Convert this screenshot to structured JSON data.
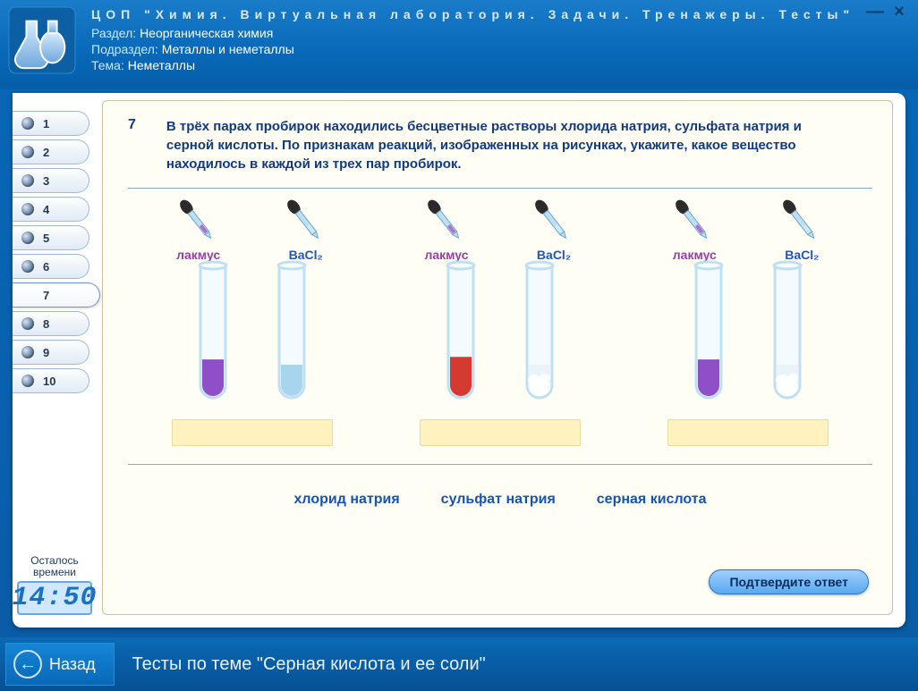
{
  "app_title": "ЦОП \"Химия. Виртуальная лаборатория. Задачи. Тренажеры. Тесты\"",
  "header": {
    "section_label": "Раздел:",
    "section_value": "Неорганическая химия",
    "subsection_label": "Подраздел:",
    "subsection_value": "Металлы и неметаллы",
    "topic_label": "Тема:",
    "topic_value": "Неметаллы"
  },
  "window_controls": {
    "minimize": "—",
    "close": "×"
  },
  "nav_numbers": [
    "1",
    "2",
    "3",
    "4",
    "5",
    "6",
    "7",
    "8",
    "9",
    "10"
  ],
  "current_question_index": 6,
  "timer": {
    "label_line1": "Осталось",
    "label_line2": "времени",
    "value": "14:50"
  },
  "question": {
    "number": "7",
    "text": "В трёх парах пробирок находились бесцветные растворы хлорида натрия, сульфата натрия и серной кислоты. По признакам реакций, изображенных на рисунках, укажите, какое вещество находилось в каждой из трех пар пробирок.",
    "reagent_labels": {
      "r1": "лакмус",
      "r2": "BaCl₂"
    },
    "pairs": [
      {
        "tube1_fill": "#8e4fc7",
        "tube1_level": 0.28,
        "tube2_fill": "#a8d4ee",
        "tube2_level": 0.24,
        "tube2_cloud": false
      },
      {
        "tube1_fill": "#d43a2f",
        "tube1_level": 0.3,
        "tube2_fill": "#eaf3f8",
        "tube2_level": 0.24,
        "tube2_cloud": true
      },
      {
        "tube1_fill": "#8e4fc7",
        "tube1_level": 0.28,
        "tube2_fill": "#eaf3f8",
        "tube2_level": 0.24,
        "tube2_cloud": true
      }
    ],
    "options": [
      "хлорид натрия",
      "сульфат натрия",
      "серная кислота"
    ]
  },
  "confirm_button": "Подтвердите ответ",
  "footer": {
    "back": "Назад",
    "title": "Тесты по теме \"Серная кислота и ее соли\""
  },
  "colors": {
    "tube_glass": "#bfe0f2",
    "dropper_bulb": "#2b2b2b",
    "dropper_glass": "#bcdff2"
  }
}
